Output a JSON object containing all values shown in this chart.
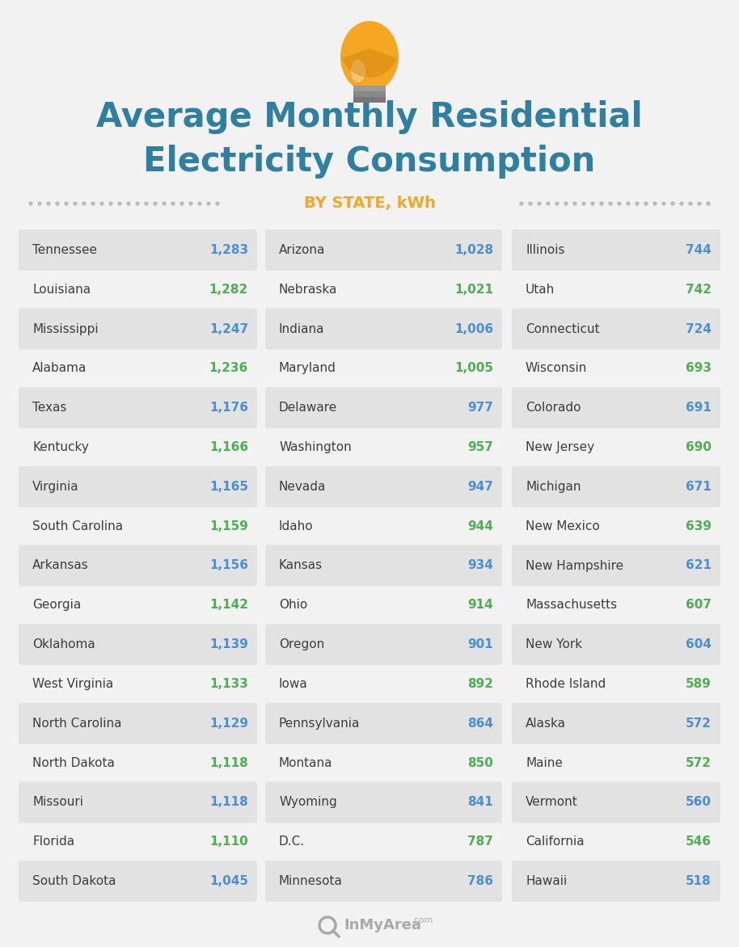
{
  "title_line1": "Average Monthly Residential",
  "title_line2": "Electricity Consumption",
  "subtitle": "BY STATE, kWh",
  "title_color": "#2e7fa0",
  "subtitle_color": "#f5a623",
  "background_color": "#f2f2f2",
  "row_shaded_color": "#e2e2e2",
  "row_unshaded_color": "#f2f2f2",
  "value_blue": "#4a8fd4",
  "value_green": "#4caf50",
  "state_color": "#3d3d3d",
  "col1": [
    {
      "state": "Tennessee",
      "value": "1,283",
      "shaded": true
    },
    {
      "state": "Louisiana",
      "value": "1,282",
      "shaded": false
    },
    {
      "state": "Mississippi",
      "value": "1,247",
      "shaded": true
    },
    {
      "state": "Alabama",
      "value": "1,236",
      "shaded": false
    },
    {
      "state": "Texas",
      "value": "1,176",
      "shaded": true
    },
    {
      "state": "Kentucky",
      "value": "1,166",
      "shaded": false
    },
    {
      "state": "Virginia",
      "value": "1,165",
      "shaded": true
    },
    {
      "state": "South Carolina",
      "value": "1,159",
      "shaded": false
    },
    {
      "state": "Arkansas",
      "value": "1,156",
      "shaded": true
    },
    {
      "state": "Georgia",
      "value": "1,142",
      "shaded": false
    },
    {
      "state": "Oklahoma",
      "value": "1,139",
      "shaded": true
    },
    {
      "state": "West Virginia",
      "value": "1,133",
      "shaded": false
    },
    {
      "state": "North Carolina",
      "value": "1,129",
      "shaded": true
    },
    {
      "state": "North Dakota",
      "value": "1,118",
      "shaded": false
    },
    {
      "state": "Missouri",
      "value": "1,118",
      "shaded": true
    },
    {
      "state": "Florida",
      "value": "1,110",
      "shaded": false
    },
    {
      "state": "South Dakota",
      "value": "1,045",
      "shaded": true
    }
  ],
  "col2": [
    {
      "state": "Arizona",
      "value": "1,028",
      "shaded": true
    },
    {
      "state": "Nebraska",
      "value": "1,021",
      "shaded": false
    },
    {
      "state": "Indiana",
      "value": "1,006",
      "shaded": true
    },
    {
      "state": "Maryland",
      "value": "1,005",
      "shaded": false
    },
    {
      "state": "Delaware",
      "value": "977",
      "shaded": true
    },
    {
      "state": "Washington",
      "value": "957",
      "shaded": false
    },
    {
      "state": "Nevada",
      "value": "947",
      "shaded": true
    },
    {
      "state": "Idaho",
      "value": "944",
      "shaded": false
    },
    {
      "state": "Kansas",
      "value": "934",
      "shaded": true
    },
    {
      "state": "Ohio",
      "value": "914",
      "shaded": false
    },
    {
      "state": "Oregon",
      "value": "901",
      "shaded": true
    },
    {
      "state": "Iowa",
      "value": "892",
      "shaded": false
    },
    {
      "state": "Pennsylvania",
      "value": "864",
      "shaded": true
    },
    {
      "state": "Montana",
      "value": "850",
      "shaded": false
    },
    {
      "state": "Wyoming",
      "value": "841",
      "shaded": true
    },
    {
      "state": "D.C.",
      "value": "787",
      "shaded": false
    },
    {
      "state": "Minnesota",
      "value": "786",
      "shaded": true
    }
  ],
  "col3": [
    {
      "state": "Illinois",
      "value": "744",
      "shaded": true
    },
    {
      "state": "Utah",
      "value": "742",
      "shaded": false
    },
    {
      "state": "Connecticut",
      "value": "724",
      "shaded": true
    },
    {
      "state": "Wisconsin",
      "value": "693",
      "shaded": false
    },
    {
      "state": "Colorado",
      "value": "691",
      "shaded": true
    },
    {
      "state": "New Jersey",
      "value": "690",
      "shaded": false
    },
    {
      "state": "Michigan",
      "value": "671",
      "shaded": true
    },
    {
      "state": "New Mexico",
      "value": "639",
      "shaded": false
    },
    {
      "state": "New Hampshire",
      "value": "621",
      "shaded": true
    },
    {
      "state": "Massachusetts",
      "value": "607",
      "shaded": false
    },
    {
      "state": "New York",
      "value": "604",
      "shaded": true
    },
    {
      "state": "Rhode Island",
      "value": "589",
      "shaded": false
    },
    {
      "state": "Alaska",
      "value": "572",
      "shaded": true
    },
    {
      "state": "Maine",
      "value": "572",
      "shaded": false
    },
    {
      "state": "Vermont",
      "value": "560",
      "shaded": true
    },
    {
      "state": "California",
      "value": "546",
      "shaded": false
    },
    {
      "state": "Hawaii",
      "value": "518",
      "shaded": true
    }
  ],
  "dot_color": "#bbbbbb",
  "footer_color": "#aaaaaa",
  "bulb_body_color": "#f5a623",
  "bulb_base_color": "#888888"
}
